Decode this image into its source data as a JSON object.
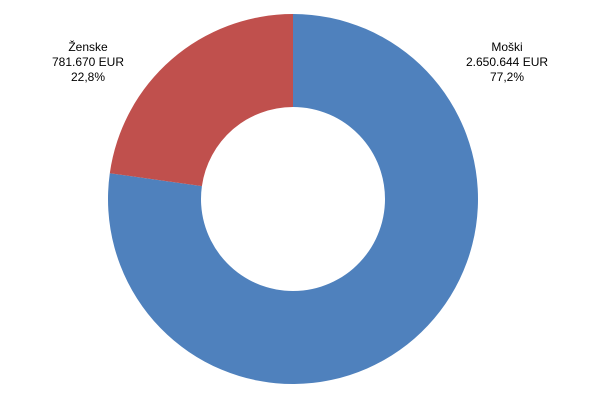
{
  "chart_data": {
    "type": "donut",
    "categories": [
      "Moški",
      "Ženske"
    ],
    "values": [
      2650644,
      781670
    ],
    "value_labels": [
      "2.650.644 EUR",
      "781.670 EUR"
    ],
    "shares": [
      77.2,
      22.8
    ],
    "share_labels": [
      "77,2%",
      "22,8%"
    ],
    "colors": [
      "#4f81bd",
      "#c0504d"
    ]
  }
}
